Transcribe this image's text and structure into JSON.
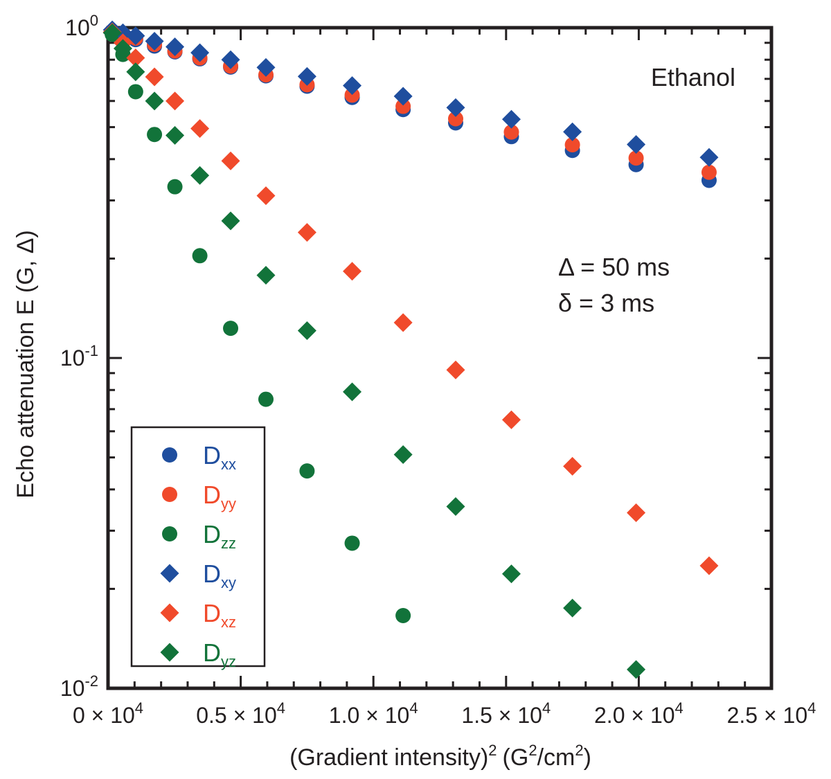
{
  "chart_data": {
    "type": "scatter",
    "title": "",
    "annotation": "Ethanol",
    "parameters": [
      "Δ = 50 ms",
      "δ = 3 ms"
    ],
    "xlabel": "(Gradient intensity)",
    "xlabel_sup": "2",
    "xlabel_units": "(G",
    "xlabel_units_sup": "2",
    "xlabel_units_tail": "/cm",
    "xlabel_units_sup2": "2",
    "xlabel_units_close": ")",
    "ylabel": "Echo attenuation E (G, Δ)",
    "xlim": [
      0,
      25000
    ],
    "ylim": [
      0.01,
      1
    ],
    "yscale": "log",
    "grid": false,
    "legend_position": "bottom-left",
    "x_ticks": [
      {
        "value": 0,
        "mantissa": "0",
        "times": "×",
        "base": "10",
        "exp": "4"
      },
      {
        "value": 5000,
        "mantissa": "0.5",
        "times": "×",
        "base": "10",
        "exp": "4"
      },
      {
        "value": 10000,
        "mantissa": "1.0",
        "times": "×",
        "base": "10",
        "exp": "4"
      },
      {
        "value": 15000,
        "mantissa": "1.5",
        "times": "×",
        "base": "10",
        "exp": "4"
      },
      {
        "value": 20000,
        "mantissa": "2.0",
        "times": "×",
        "base": "10",
        "exp": "4"
      },
      {
        "value": 25000,
        "mantissa": "2.5",
        "times": "×",
        "base": "10",
        "exp": "4"
      }
    ],
    "y_ticks": [
      {
        "value": 1,
        "base": "10",
        "exp": "0"
      },
      {
        "value": 0.1,
        "base": "10",
        "exp": "-1"
      },
      {
        "value": 0.01,
        "base": "10",
        "exp": "-2"
      }
    ],
    "series": [
      {
        "name": "D",
        "sub": "xx",
        "marker": "circle",
        "color": "#1f4e9e",
        "x": [
          160,
          560,
          1040,
          1750,
          2520,
          3460,
          4620,
          5950,
          7500,
          9200,
          11120,
          13100,
          15200,
          17500,
          19900,
          22650
        ],
        "y": [
          0.97,
          0.95,
          0.92,
          0.88,
          0.845,
          0.805,
          0.76,
          0.715,
          0.665,
          0.615,
          0.565,
          0.515,
          0.468,
          0.425,
          0.385,
          0.345
        ]
      },
      {
        "name": "D",
        "sub": "yy",
        "marker": "circle",
        "color": "#f04a2b",
        "x": [
          160,
          560,
          1040,
          1750,
          2520,
          3460,
          4620,
          5950,
          7500,
          9200,
          11120,
          13100,
          15200,
          17500,
          19900,
          22650
        ],
        "y": [
          0.975,
          0.955,
          0.93,
          0.89,
          0.85,
          0.81,
          0.765,
          0.72,
          0.672,
          0.625,
          0.578,
          0.53,
          0.483,
          0.442,
          0.403,
          0.365
        ]
      },
      {
        "name": "D",
        "sub": "zz",
        "marker": "circle",
        "color": "#12733a",
        "x": [
          160,
          560,
          1040,
          1750,
          2520,
          3460,
          4620,
          5950,
          7500,
          9200,
          11120
        ],
        "y": [
          0.955,
          0.83,
          0.64,
          0.475,
          0.33,
          0.204,
          0.123,
          0.075,
          0.0455,
          0.0275,
          0.0166
        ]
      },
      {
        "name": "D",
        "sub": "xy",
        "marker": "diamond",
        "color": "#1f4e9e",
        "x": [
          160,
          560,
          1040,
          1750,
          2520,
          3460,
          4620,
          5950,
          7500,
          9200,
          11120,
          13100,
          15200,
          17500,
          19900,
          22650
        ],
        "y": [
          0.985,
          0.965,
          0.945,
          0.91,
          0.875,
          0.84,
          0.8,
          0.758,
          0.712,
          0.668,
          0.62,
          0.573,
          0.528,
          0.484,
          0.443,
          0.405
        ]
      },
      {
        "name": "D",
        "sub": "xz",
        "marker": "diamond",
        "color": "#f04a2b",
        "x": [
          160,
          560,
          1040,
          1750,
          2520,
          3460,
          4620,
          5950,
          7500,
          9200,
          11120,
          13100,
          15200,
          17500,
          19900,
          22650
        ],
        "y": [
          0.97,
          0.9,
          0.81,
          0.71,
          0.6,
          0.495,
          0.395,
          0.31,
          0.24,
          0.183,
          0.128,
          0.092,
          0.065,
          0.047,
          0.034,
          0.0235
        ]
      },
      {
        "name": "D",
        "sub": "yz",
        "marker": "diamond",
        "color": "#12733a",
        "x": [
          160,
          560,
          1040,
          1750,
          2520,
          3460,
          4620,
          5950,
          7500,
          9200,
          11120,
          13100,
          15200,
          17500,
          19900
        ],
        "y": [
          0.965,
          0.865,
          0.735,
          0.6,
          0.472,
          0.357,
          0.26,
          0.178,
          0.121,
          0.079,
          0.051,
          0.0355,
          0.0222,
          0.0175,
          0.0114
        ]
      }
    ]
  }
}
